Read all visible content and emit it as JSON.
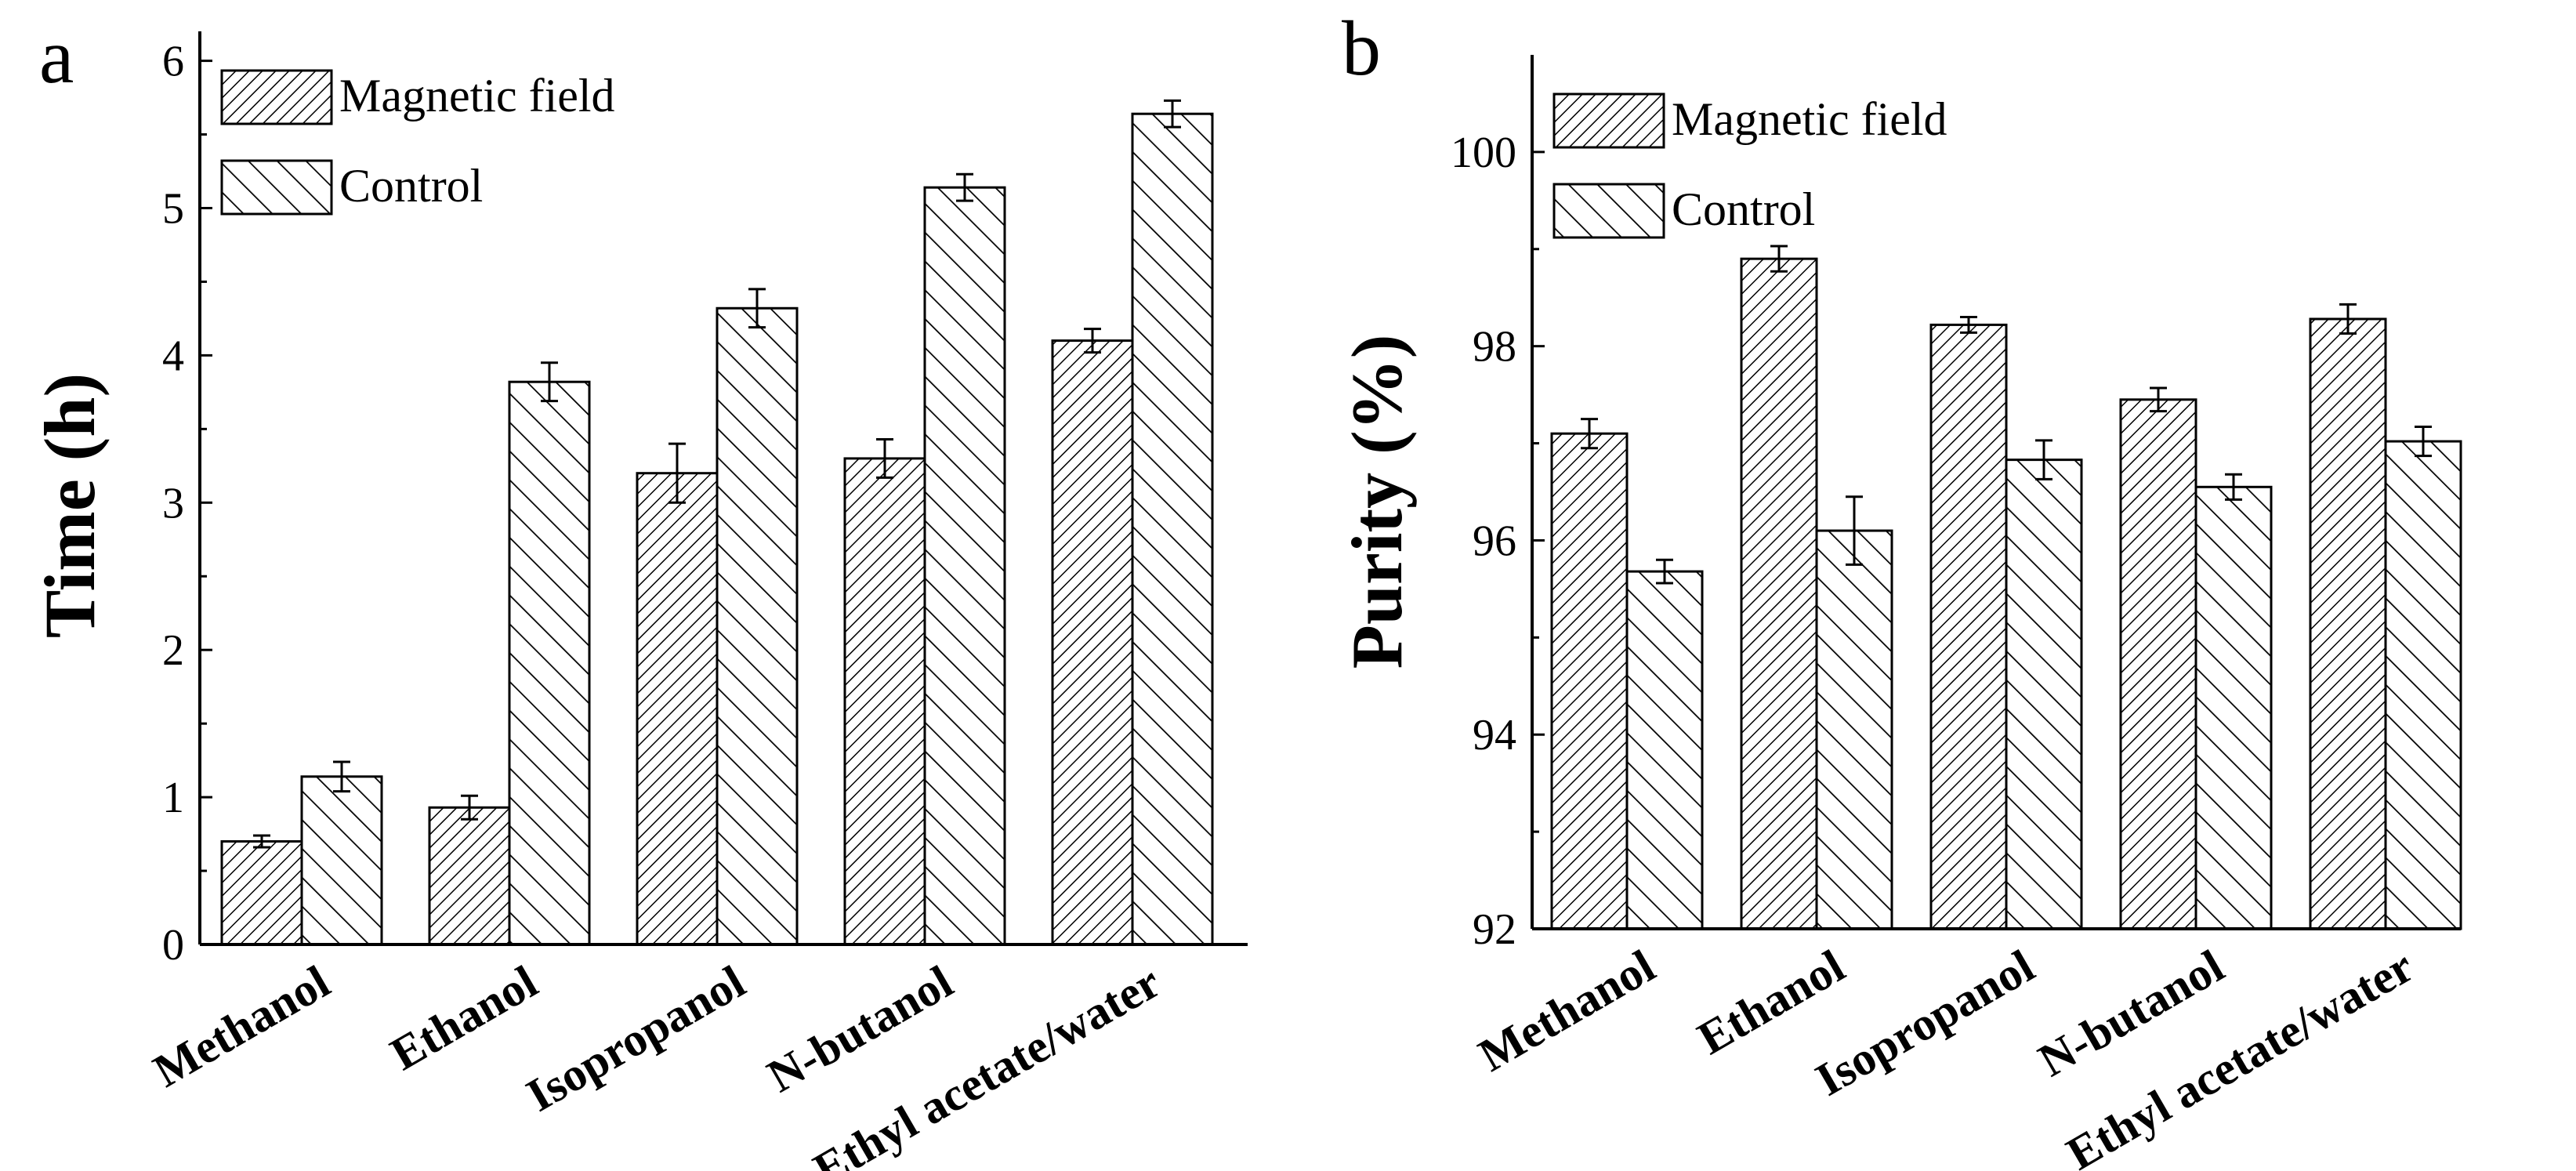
{
  "colors": {
    "ink": "#000000",
    "background": "#ffffff"
  },
  "chart_data": [
    {
      "panel": "a",
      "type": "bar",
      "ylabel": "Time (h)",
      "xlabel": "",
      "ylim": [
        0,
        6.2
      ],
      "yticks": [
        0,
        1,
        2,
        3,
        4,
        5,
        6
      ],
      "categories": [
        "Methanol",
        "Ethanol",
        "Isopropanol",
        "N-butanol",
        "Ethyl acetate/water"
      ],
      "series": [
        {
          "name": "Magnetic field",
          "hatch": "dense",
          "values": [
            0.7,
            0.93,
            3.2,
            3.3,
            4.1
          ],
          "errors": [
            0.04,
            0.08,
            0.2,
            0.13,
            0.08
          ]
        },
        {
          "name": "Control",
          "hatch": "sparse",
          "values": [
            1.14,
            3.82,
            4.32,
            5.14,
            5.64
          ],
          "errors": [
            0.1,
            0.13,
            0.13,
            0.09,
            0.09
          ]
        }
      ],
      "legend": "top-left",
      "grid": false
    },
    {
      "panel": "b",
      "type": "bar",
      "ylabel": "Purity (%)",
      "xlabel": "",
      "ylim": [
        92,
        101
      ],
      "yticks": [
        92,
        94,
        96,
        98,
        100
      ],
      "categories": [
        "Methanol",
        "Ethanol",
        "Isopropanol",
        "N-butanol",
        "Ethyl acetate/water"
      ],
      "series": [
        {
          "name": "Magnetic field",
          "hatch": "dense",
          "values": [
            97.1,
            98.9,
            98.22,
            97.45,
            98.28
          ],
          "errors": [
            0.15,
            0.13,
            0.08,
            0.12,
            0.15
          ]
        },
        {
          "name": "Control",
          "hatch": "sparse",
          "values": [
            95.68,
            96.1,
            96.83,
            96.55,
            97.02
          ],
          "errors": [
            0.12,
            0.35,
            0.2,
            0.13,
            0.15
          ]
        }
      ],
      "legend": "top-left",
      "grid": false
    }
  ]
}
